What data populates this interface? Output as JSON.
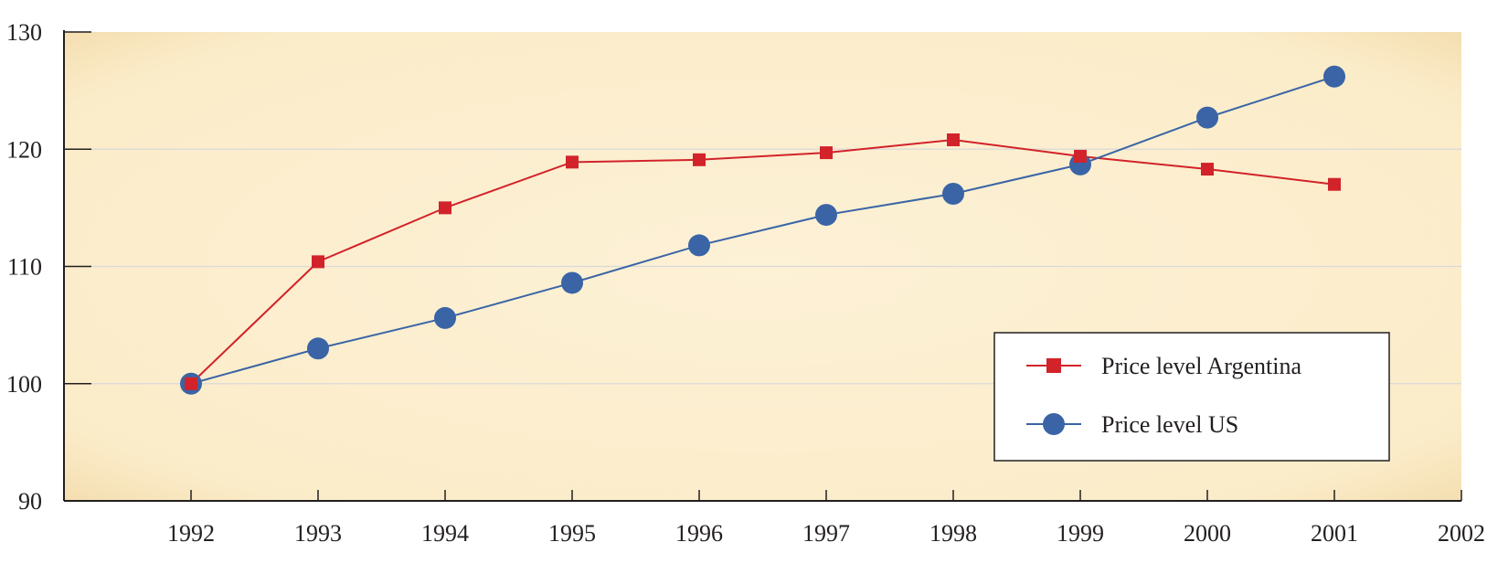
{
  "chart_data": {
    "type": "line",
    "title": "",
    "xlabel": "",
    "ylabel": "",
    "x": [
      1992,
      1993,
      1994,
      1995,
      1996,
      1997,
      1998,
      1999,
      2000,
      2001
    ],
    "x_ticks": [
      "1992",
      "1993",
      "1994",
      "1995",
      "1996",
      "1997",
      "1998",
      "1999",
      "2000",
      "2001",
      "2002"
    ],
    "xlim": [
      1991,
      2002
    ],
    "ylim": [
      90,
      130
    ],
    "y_ticks": [
      "90",
      "100",
      "110",
      "120",
      "130"
    ],
    "grid": true,
    "legend_position": "lower-right",
    "plot_background": "#fdf1d3",
    "series": [
      {
        "name": "Price level Argentina",
        "marker": "square",
        "color": "#d2232a",
        "values": [
          100,
          110.4,
          115,
          118.9,
          119.1,
          119.7,
          120.8,
          119.4,
          118.3,
          117
        ]
      },
      {
        "name": "Price level US",
        "marker": "circle",
        "color": "#3a64a6",
        "values": [
          100,
          103,
          105.6,
          108.6,
          111.8,
          114.4,
          116.2,
          118.7,
          122.7,
          126.2
        ]
      }
    ]
  }
}
